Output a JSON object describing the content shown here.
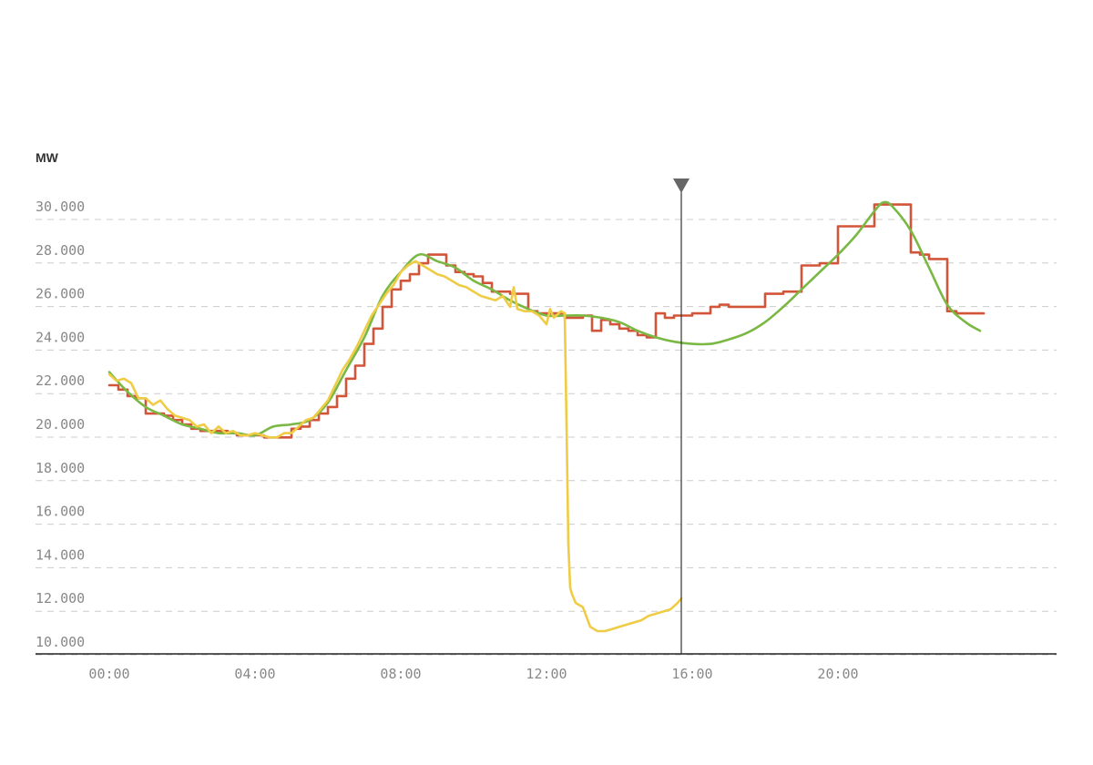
{
  "chart_data": {
    "type": "line",
    "ylabel": "MW",
    "ylim": [
      9500,
      31000
    ],
    "xlim": [
      0,
      24
    ],
    "y_ticks": [
      {
        "value": 10000,
        "label": "10.000"
      },
      {
        "value": 12000,
        "label": "12.000"
      },
      {
        "value": 14000,
        "label": "14.000"
      },
      {
        "value": 16000,
        "label": "16.000"
      },
      {
        "value": 18000,
        "label": "18.000"
      },
      {
        "value": 20000,
        "label": "20.000"
      },
      {
        "value": 22000,
        "label": "22.000"
      },
      {
        "value": 24000,
        "label": "24.000"
      },
      {
        "value": 26000,
        "label": "26.000"
      },
      {
        "value": 28000,
        "label": "28.000"
      },
      {
        "value": 30000,
        "label": "30.000"
      }
    ],
    "x_ticks": [
      {
        "value": 0,
        "label": "00:00"
      },
      {
        "value": 4,
        "label": "04:00"
      },
      {
        "value": 8,
        "label": "08:00"
      },
      {
        "value": 12,
        "label": "12:00"
      },
      {
        "value": 16,
        "label": "16:00"
      },
      {
        "value": 20,
        "label": "20:00"
      }
    ],
    "grid": true,
    "now_marker_x": 15.7,
    "series": [
      {
        "color": "#d2553a",
        "style": "step",
        "x": [
          0,
          0.25,
          0.5,
          0.75,
          1,
          1.25,
          1.5,
          1.75,
          2,
          2.25,
          2.5,
          2.75,
          3,
          3.25,
          3.5,
          3.75,
          4,
          4.25,
          4.5,
          4.75,
          5,
          5.25,
          5.5,
          5.75,
          6,
          6.25,
          6.5,
          6.75,
          7,
          7.25,
          7.5,
          7.75,
          8,
          8.25,
          8.5,
          8.75,
          9,
          9.25,
          9.5,
          9.75,
          10,
          10.25,
          10.5,
          10.75,
          11,
          11.25,
          11.5,
          11.75,
          12,
          12.25,
          12.5,
          12.75,
          13,
          13.25,
          13.5,
          13.75,
          14,
          14.25,
          14.5,
          14.75,
          15,
          15.25,
          15.5,
          15.75,
          16,
          16.25,
          16.5,
          16.75,
          17,
          17.25,
          17.5,
          17.75,
          18,
          18.25,
          18.5,
          18.75,
          19,
          19.25,
          19.5,
          19.75,
          20,
          20.25,
          20.5,
          20.75,
          21,
          21.25,
          21.5,
          21.75,
          22,
          22.25,
          22.5,
          22.75,
          23,
          23.25,
          23.5,
          23.75
        ],
        "values": [
          21800,
          21600,
          21300,
          21200,
          20500,
          20500,
          20400,
          20200,
          20000,
          19800,
          19700,
          19700,
          19700,
          19600,
          19500,
          19500,
          19500,
          19400,
          19400,
          19400,
          19800,
          19900,
          20200,
          20500,
          20800,
          21300,
          22100,
          22700,
          23700,
          24400,
          25400,
          26200,
          26600,
          26900,
          27400,
          27800,
          27800,
          27300,
          27000,
          26900,
          26800,
          26500,
          26100,
          26100,
          26000,
          26000,
          25200,
          25100,
          25100,
          25100,
          24900,
          24900,
          25000,
          24300,
          24800,
          24600,
          24400,
          24300,
          24100,
          24000,
          25100,
          24900,
          25000,
          25000,
          25100,
          25100,
          25400,
          25500,
          25400,
          25400,
          25400,
          25400,
          26000,
          26000,
          26100,
          26100,
          27300,
          27300,
          27400,
          27400,
          29100,
          29100,
          29100,
          29100,
          30100,
          30100,
          30100,
          30100,
          27900,
          27800,
          27600,
          27600,
          25200,
          25100,
          25100,
          25100
        ]
      },
      {
        "color": "#7ab843",
        "style": "smooth",
        "x": [
          0,
          0.5,
          1,
          1.5,
          2,
          2.5,
          3,
          3.5,
          4,
          4.5,
          5,
          5.5,
          6,
          6.5,
          7,
          7.5,
          8,
          8.5,
          9,
          9.5,
          10,
          10.5,
          11,
          11.5,
          12,
          12.5,
          13,
          13.5,
          14,
          14.5,
          15,
          15.5,
          16,
          16.5,
          17,
          17.5,
          18,
          18.5,
          19,
          19.5,
          20,
          20.5,
          21,
          21.25,
          21.5,
          22,
          22.5,
          23,
          23.5,
          23.9
        ],
        "values": [
          22400,
          21500,
          20800,
          20400,
          20000,
          19800,
          19600,
          19600,
          19500,
          19900,
          20000,
          20200,
          21000,
          22500,
          24000,
          25900,
          27000,
          27800,
          27500,
          27200,
          26600,
          26200,
          25700,
          25300,
          25000,
          25000,
          25000,
          24900,
          24700,
          24300,
          24000,
          23800,
          23700,
          23700,
          23900,
          24200,
          24700,
          25400,
          26200,
          27000,
          27800,
          28700,
          29800,
          30200,
          30000,
          28900,
          27200,
          25500,
          24700,
          24300
        ]
      },
      {
        "color": "#efcc45",
        "style": "line",
        "x": [
          0,
          0.2,
          0.4,
          0.6,
          0.8,
          1,
          1.2,
          1.4,
          1.6,
          1.8,
          2,
          2.2,
          2.4,
          2.6,
          2.8,
          3,
          3.2,
          3.4,
          3.6,
          3.8,
          4,
          4.2,
          4.4,
          4.6,
          4.8,
          5,
          5.2,
          5.4,
          5.6,
          5.8,
          6,
          6.2,
          6.4,
          6.6,
          6.8,
          7,
          7.2,
          7.4,
          7.6,
          7.8,
          8,
          8.2,
          8.4,
          8.6,
          8.8,
          9,
          9.2,
          9.4,
          9.6,
          9.8,
          10,
          10.2,
          10.4,
          10.6,
          10.8,
          11,
          11.1,
          11.2,
          11.4,
          11.6,
          11.8,
          12,
          12.1,
          12.2,
          12.4,
          12.5,
          12.55,
          12.6,
          12.65,
          12.7,
          12.8,
          13,
          13.2,
          13.4,
          13.6,
          13.8,
          14,
          14.2,
          14.4,
          14.6,
          14.8,
          15,
          15.2,
          15.4,
          15.6,
          15.7
        ],
        "values": [
          22300,
          22000,
          22100,
          21900,
          21200,
          21200,
          20900,
          21100,
          20700,
          20400,
          20300,
          20200,
          19900,
          20000,
          19600,
          19900,
          19600,
          19700,
          19500,
          19500,
          19600,
          19500,
          19400,
          19400,
          19600,
          19600,
          19900,
          20200,
          20300,
          20700,
          21100,
          21800,
          22500,
          23000,
          23600,
          24300,
          25000,
          25500,
          26000,
          26400,
          27000,
          27300,
          27500,
          27300,
          27100,
          26900,
          26800,
          26600,
          26400,
          26300,
          26100,
          25900,
          25800,
          25700,
          25900,
          25400,
          26300,
          25300,
          25200,
          25200,
          25000,
          24600,
          25300,
          24900,
          25200,
          25100,
          20000,
          14500,
          12500,
          12200,
          11800,
          11600,
          10700,
          10500,
          10500,
          10600,
          10700,
          10800,
          10900,
          11000,
          11200,
          11300,
          11400,
          11500,
          11800,
          12000
        ]
      }
    ]
  }
}
